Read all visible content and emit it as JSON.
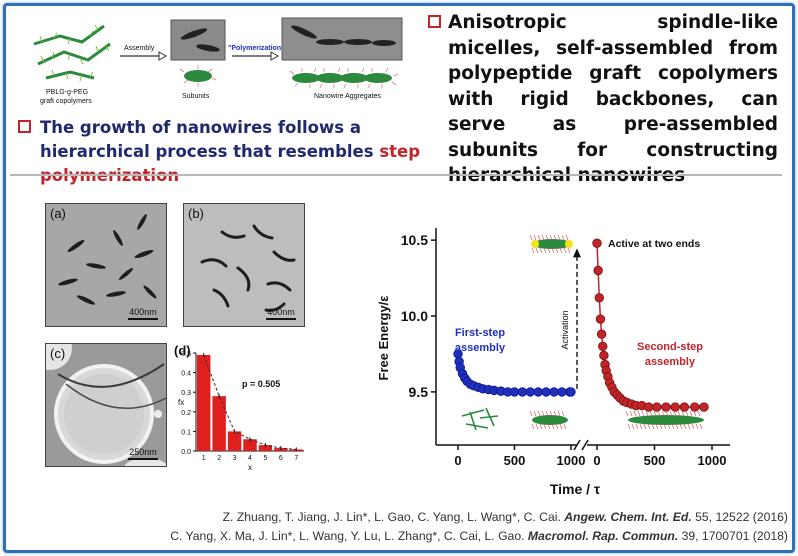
{
  "schematic": {
    "copolymer_label": "PBLG-g-PEG\ngraft copolymers",
    "arrow1_label": "Assembly",
    "subunits_label": "Subunits",
    "arrow2_label": "\"Polymerization\"",
    "aggregates_label": "Nanowire Aggregates"
  },
  "headline_right": "Anisotropic spindle-like micelles, self-assembled from polypeptide graft copolymers with rigid backbones, can serve as pre-assembled subunits for constructing hierarchical nanowires",
  "headline_left": {
    "part1": "The growth of nanowires follows a hierarchical process that resembles ",
    "highlight": "step polymerization"
  },
  "panels": {
    "a": {
      "label": "(a)",
      "scale": "400nm"
    },
    "b": {
      "label": "(b)",
      "scale": "400nm"
    },
    "c": {
      "label": "(c)",
      "scale": "250nm"
    },
    "d": {
      "label": "(d)"
    }
  },
  "histogram": {
    "type": "bar",
    "annotation": "p = 0.505",
    "ylabel": "fx",
    "xlabel": "x",
    "categories": [
      1,
      2,
      3,
      4,
      5,
      6,
      7
    ],
    "values": [
      0.49,
      0.28,
      0.1,
      0.06,
      0.03,
      0.015,
      0.008
    ],
    "ylim": [
      0,
      0.5
    ],
    "yticks": [
      "0.0",
      "0.1",
      "0.2",
      "0.3",
      "0.4",
      "0.5"
    ],
    "colors": {
      "bar": "#e0201e",
      "fit": "#333333"
    }
  },
  "chart_data": {
    "type": "line",
    "xlabel": "Time / τ",
    "ylabel": "Free Energy/ε",
    "ylim": [
      9.15,
      10.58
    ],
    "yticks": [
      "9.5",
      "10.0",
      "10.5"
    ],
    "xticks_first": [
      "0",
      "500",
      "1000"
    ],
    "xticks_second": [
      "0",
      "500",
      "1000"
    ],
    "series": [
      {
        "name": "First-step assembly",
        "color": "#1f2fc0",
        "x": [
          0,
          10,
          20,
          40,
          60,
          80,
          110,
          140,
          180,
          220,
          270,
          320,
          380,
          440,
          500,
          570,
          640,
          710,
          780,
          850,
          920,
          990,
          1000
        ],
        "y": [
          9.75,
          9.7,
          9.66,
          9.62,
          9.59,
          9.57,
          9.55,
          9.54,
          9.53,
          9.52,
          9.515,
          9.51,
          9.505,
          9.5,
          9.5,
          9.5,
          9.5,
          9.5,
          9.5,
          9.5,
          9.5,
          9.5,
          9.5
        ]
      },
      {
        "name": "Second-step assembly",
        "color": "#c0252a",
        "x": [
          0,
          10,
          20,
          30,
          40,
          50,
          60,
          70,
          80,
          95,
          110,
          130,
          150,
          175,
          200,
          230,
          260,
          300,
          340,
          390,
          450,
          520,
          600,
          680,
          760,
          850,
          930
        ],
        "y": [
          10.48,
          10.3,
          10.12,
          9.98,
          9.88,
          9.8,
          9.74,
          9.68,
          9.64,
          9.6,
          9.56,
          9.53,
          9.5,
          9.48,
          9.46,
          9.44,
          9.43,
          9.42,
          9.41,
          9.41,
          9.4,
          9.4,
          9.4,
          9.4,
          9.4,
          9.4,
          9.4
        ]
      }
    ],
    "annotations": {
      "activation": "Activation",
      "active": "Active at two ends",
      "first": [
        "First-step",
        "assembly"
      ],
      "second": [
        "Second-step",
        "assembly"
      ]
    }
  },
  "references": [
    {
      "authors": "Z. Zhuang, T. Jiang, J. Lin*, L. Gao, C. Yang, L. Wang*, C. Cai. ",
      "journal": "Angew. Chem. Int. Ed.",
      "details": " 55, 12522 (2016)"
    },
    {
      "authors": "C. Yang, X.  Ma, J. Lin*, L. Wang, Y. Lu, L. Zhang*, C. Cai, L. Gao.  ",
      "journal": "Macromol. Rap. Commun.",
      "details": " 39, 1700701 (2018)"
    }
  ]
}
